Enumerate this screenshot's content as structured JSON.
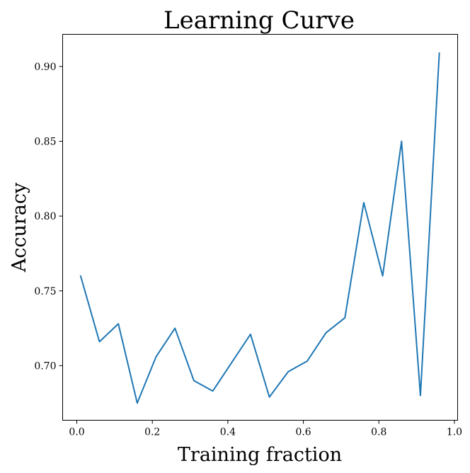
{
  "chart_data": {
    "type": "line",
    "title": "Learning Curve",
    "xlabel": "Training fraction",
    "ylabel": "Accuracy",
    "xlim": [
      -0.0375,
      1.0085
    ],
    "ylim": [
      0.6635,
      0.9215
    ],
    "grid": false,
    "legend": "none",
    "x_ticks": [
      0.0,
      0.2,
      0.4,
      0.6,
      0.8,
      1.0
    ],
    "x_tick_labels": [
      "0.0",
      "0.2",
      "0.4",
      "0.6",
      "0.8",
      "1.0"
    ],
    "y_ticks": [
      0.7,
      0.75,
      0.8,
      0.85,
      0.9
    ],
    "y_tick_labels": [
      "0.70",
      "0.75",
      "0.80",
      "0.85",
      "0.90"
    ],
    "series": [
      {
        "color": "#1f77b4",
        "x": [
          0.01,
          0.06,
          0.11,
          0.16,
          0.21,
          0.26,
          0.31,
          0.36,
          0.41,
          0.46,
          0.51,
          0.56,
          0.61,
          0.66,
          0.71,
          0.76,
          0.81,
          0.86,
          0.91,
          0.96
        ],
        "y": [
          0.76,
          0.716,
          0.728,
          0.675,
          0.706,
          0.725,
          0.69,
          0.683,
          0.702,
          0.721,
          0.679,
          0.696,
          0.703,
          0.722,
          0.732,
          0.809,
          0.76,
          0.85,
          0.68,
          0.909
        ]
      }
    ]
  }
}
